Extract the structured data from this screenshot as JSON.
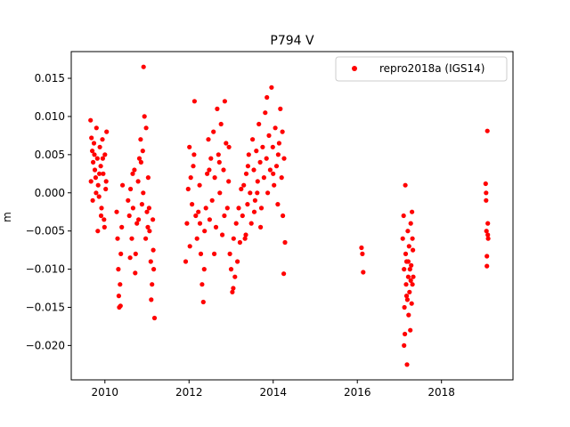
{
  "chart_data": {
    "type": "scatter",
    "title": "P794 V",
    "xlabel": "",
    "ylabel": "m",
    "xlim": [
      2009.2,
      2019.7
    ],
    "ylim": [
      -0.0245,
      0.0185
    ],
    "x_ticks": [
      2010,
      2012,
      2014,
      2016,
      2018
    ],
    "x_tick_labels": [
      "2010",
      "2012",
      "2014",
      "2016",
      "2018"
    ],
    "y_ticks": [
      -0.02,
      -0.015,
      -0.01,
      -0.005,
      0.0,
      0.005,
      0.01,
      0.015
    ],
    "y_tick_labels": [
      "−0.020",
      "−0.015",
      "−0.010",
      "−0.005",
      "0.000",
      "0.005",
      "0.010",
      "0.015"
    ],
    "legend": {
      "placement": "top-right",
      "entries": [
        "repro2018a (IGS14)"
      ]
    },
    "grid": false,
    "series": [
      {
        "name": "repro2018a (IGS14)",
        "color": "#ff0000",
        "marker": "circle",
        "points": [
          [
            2009.66,
            0.0095
          ],
          [
            2009.68,
            0.0072
          ],
          [
            2009.7,
            0.0055
          ],
          [
            2009.72,
            0.004
          ],
          [
            2009.74,
            0.0065
          ],
          [
            2009.76,
            0.003
          ],
          [
            2009.78,
            0.002
          ],
          [
            2009.8,
            0.0085
          ],
          [
            2009.82,
            0.0045
          ],
          [
            2009.84,
            0.001
          ],
          [
            2009.86,
            -0.0005
          ],
          [
            2009.88,
            0.006
          ],
          [
            2009.9,
            0.0035
          ],
          [
            2009.92,
            -0.002
          ],
          [
            2009.94,
            0.007
          ],
          [
            2009.96,
            0.0025
          ],
          [
            2009.98,
            -0.0035
          ],
          [
            2010.0,
            0.005
          ],
          [
            2010.02,
            0.0005
          ],
          [
            2010.04,
            0.008
          ],
          [
            2009.67,
            0.0015
          ],
          [
            2009.71,
            -0.001
          ],
          [
            2009.75,
            0.005
          ],
          [
            2009.79,
            0.0
          ],
          [
            2009.83,
            -0.005
          ],
          [
            2009.87,
            0.0025
          ],
          [
            2009.91,
            -0.003
          ],
          [
            2009.95,
            0.0045
          ],
          [
            2009.99,
            -0.0045
          ],
          [
            2010.03,
            0.0015
          ],
          [
            2010.28,
            -0.0025
          ],
          [
            2010.3,
            -0.006
          ],
          [
            2010.32,
            -0.01
          ],
          [
            2010.34,
            -0.015
          ],
          [
            2010.36,
            -0.012
          ],
          [
            2010.38,
            -0.008
          ],
          [
            2010.4,
            -0.0045
          ],
          [
            2010.42,
            0.001
          ],
          [
            2010.33,
            -0.0135
          ],
          [
            2010.37,
            -0.0148
          ],
          [
            2010.55,
            -0.001
          ],
          [
            2010.58,
            -0.003
          ],
          [
            2010.61,
            0.0005
          ],
          [
            2010.64,
            -0.006
          ],
          [
            2010.67,
            -0.002
          ],
          [
            2010.7,
            0.003
          ],
          [
            2010.73,
            -0.008
          ],
          [
            2010.76,
            -0.004
          ],
          [
            2010.79,
            0.0015
          ],
          [
            2010.82,
            0.0045
          ],
          [
            2010.85,
            0.007
          ],
          [
            2010.88,
            -0.0015
          ],
          [
            2010.91,
            0.0
          ],
          [
            2010.94,
            0.01
          ],
          [
            2010.97,
            -0.006
          ],
          [
            2011.0,
            -0.0025
          ],
          [
            2011.03,
            0.002
          ],
          [
            2011.06,
            -0.005
          ],
          [
            2011.09,
            -0.009
          ],
          [
            2011.12,
            -0.012
          ],
          [
            2011.15,
            -0.0075
          ],
          [
            2011.18,
            -0.0164
          ],
          [
            2010.92,
            0.0165
          ],
          [
            2010.6,
            -0.0085
          ],
          [
            2010.72,
            -0.0105
          ],
          [
            2010.86,
            0.004
          ],
          [
            2010.98,
            0.0085
          ],
          [
            2011.05,
            -0.002
          ],
          [
            2011.1,
            -0.014
          ],
          [
            2011.14,
            -0.0035
          ],
          [
            2010.66,
            0.0025
          ],
          [
            2010.8,
            -0.0035
          ],
          [
            2010.9,
            0.0055
          ],
          [
            2011.02,
            -0.0045
          ],
          [
            2011.16,
            -0.01
          ],
          [
            2011.92,
            -0.009
          ],
          [
            2011.95,
            -0.004
          ],
          [
            2011.98,
            0.0005
          ],
          [
            2012.01,
            0.006
          ],
          [
            2012.04,
            0.002
          ],
          [
            2012.07,
            -0.0015
          ],
          [
            2012.1,
            0.0035
          ],
          [
            2012.13,
            0.012
          ],
          [
            2012.16,
            -0.003
          ],
          [
            2012.19,
            -0.006
          ],
          [
            2012.22,
            -0.0025
          ],
          [
            2012.25,
            0.001
          ],
          [
            2012.28,
            -0.008
          ],
          [
            2012.31,
            -0.012
          ],
          [
            2012.34,
            -0.0143
          ],
          [
            2012.37,
            -0.005
          ],
          [
            2012.4,
            -0.002
          ],
          [
            2012.43,
            0.0025
          ],
          [
            2012.46,
            0.007
          ],
          [
            2012.49,
            -0.0035
          ],
          [
            2012.52,
            0.0045
          ],
          [
            2012.55,
            -0.001
          ],
          [
            2012.58,
            0.008
          ],
          [
            2012.61,
            0.002
          ],
          [
            2012.64,
            -0.0045
          ],
          [
            2012.67,
            0.011
          ],
          [
            2012.7,
            0.005
          ],
          [
            2012.73,
            0.0
          ],
          [
            2012.76,
            0.009
          ],
          [
            2012.79,
            -0.0055
          ],
          [
            2012.82,
            0.003
          ],
          [
            2012.85,
            0.012
          ],
          [
            2012.88,
            0.0065
          ],
          [
            2012.91,
            -0.002
          ],
          [
            2012.94,
            0.0015
          ],
          [
            2012.97,
            -0.008
          ],
          [
            2013.0,
            -0.01
          ],
          [
            2013.03,
            -0.013
          ],
          [
            2013.06,
            -0.006
          ],
          [
            2013.09,
            -0.011
          ],
          [
            2013.12,
            -0.004
          ],
          [
            2013.15,
            -0.009
          ],
          [
            2013.18,
            -0.002
          ],
          [
            2013.21,
            -0.0065
          ],
          [
            2013.24,
            0.0005
          ],
          [
            2012.02,
            -0.007
          ],
          [
            2012.12,
            0.005
          ],
          [
            2012.26,
            -0.004
          ],
          [
            2012.36,
            -0.01
          ],
          [
            2012.48,
            0.003
          ],
          [
            2012.6,
            -0.008
          ],
          [
            2012.72,
            0.004
          ],
          [
            2012.84,
            -0.003
          ],
          [
            2012.95,
            0.006
          ],
          [
            2013.05,
            -0.0125
          ],
          [
            2013.27,
            -0.003
          ],
          [
            2013.3,
            0.001
          ],
          [
            2013.33,
            -0.006
          ],
          [
            2013.36,
            0.0025
          ],
          [
            2013.39,
            -0.0015
          ],
          [
            2013.42,
            0.005
          ],
          [
            2013.45,
            0.0
          ],
          [
            2013.48,
            -0.004
          ],
          [
            2013.51,
            0.007
          ],
          [
            2013.54,
            0.003
          ],
          [
            2013.57,
            -0.001
          ],
          [
            2013.6,
            0.0055
          ],
          [
            2013.63,
            0.0015
          ],
          [
            2013.66,
            0.009
          ],
          [
            2013.69,
            0.004
          ],
          [
            2013.72,
            -0.002
          ],
          [
            2013.75,
            0.006
          ],
          [
            2013.78,
            0.002
          ],
          [
            2013.81,
            0.0105
          ],
          [
            2013.84,
            0.0045
          ],
          [
            2013.87,
            0.0
          ],
          [
            2013.9,
            0.0075
          ],
          [
            2013.93,
            0.003
          ],
          [
            2013.96,
            0.0138
          ],
          [
            2013.99,
            0.006
          ],
          [
            2014.02,
            0.001
          ],
          [
            2014.05,
            0.0085
          ],
          [
            2014.08,
            0.0035
          ],
          [
            2014.11,
            -0.0015
          ],
          [
            2014.14,
            0.0065
          ],
          [
            2014.17,
            0.011
          ],
          [
            2014.2,
            0.002
          ],
          [
            2014.23,
            -0.003
          ],
          [
            2014.26,
            0.0045
          ],
          [
            2014.28,
            -0.0065
          ],
          [
            2014.25,
            -0.0106
          ],
          [
            2013.35,
            -0.0055
          ],
          [
            2013.55,
            -0.0025
          ],
          [
            2013.7,
            -0.0045
          ],
          [
            2013.85,
            0.0125
          ],
          [
            2014.0,
            0.0025
          ],
          [
            2014.12,
            0.005
          ],
          [
            2014.22,
            0.008
          ],
          [
            2013.4,
            0.0035
          ],
          [
            2013.62,
            0.0
          ],
          [
            2016.1,
            -0.0072
          ],
          [
            2016.12,
            -0.008
          ],
          [
            2016.14,
            -0.0104
          ],
          [
            2017.08,
            -0.006
          ],
          [
            2017.1,
            -0.003
          ],
          [
            2017.11,
            -0.01
          ],
          [
            2017.12,
            -0.015
          ],
          [
            2017.13,
            -0.0185
          ],
          [
            2017.14,
            0.001
          ],
          [
            2017.15,
            -0.008
          ],
          [
            2017.16,
            -0.012
          ],
          [
            2017.17,
            -0.009
          ],
          [
            2017.18,
            -0.0225
          ],
          [
            2017.19,
            -0.014
          ],
          [
            2017.2,
            -0.005
          ],
          [
            2017.21,
            -0.011
          ],
          [
            2017.22,
            -0.016
          ],
          [
            2017.23,
            -0.007
          ],
          [
            2017.24,
            -0.013
          ],
          [
            2017.25,
            -0.01
          ],
          [
            2017.26,
            -0.018
          ],
          [
            2017.27,
            -0.004
          ],
          [
            2017.28,
            -0.0095
          ],
          [
            2017.29,
            -0.0145
          ],
          [
            2017.3,
            -0.0025
          ],
          [
            2017.31,
            -0.012
          ],
          [
            2017.32,
            -0.0075
          ],
          [
            2017.33,
            -0.011
          ],
          [
            2017.11,
            -0.02
          ],
          [
            2017.17,
            -0.0135
          ],
          [
            2017.21,
            -0.009
          ],
          [
            2017.27,
            -0.0115
          ],
          [
            2017.31,
            -0.006
          ],
          [
            2019.05,
            0.0012
          ],
          [
            2019.06,
            -0.001
          ],
          [
            2019.07,
            -0.005
          ],
          [
            2019.08,
            -0.0096
          ],
          [
            2019.09,
            0.0081
          ],
          [
            2019.1,
            -0.004
          ],
          [
            2019.11,
            -0.006
          ],
          [
            2019.08,
            -0.0083
          ],
          [
            2019.06,
            0.0
          ],
          [
            2019.1,
            -0.0055
          ]
        ]
      }
    ]
  }
}
